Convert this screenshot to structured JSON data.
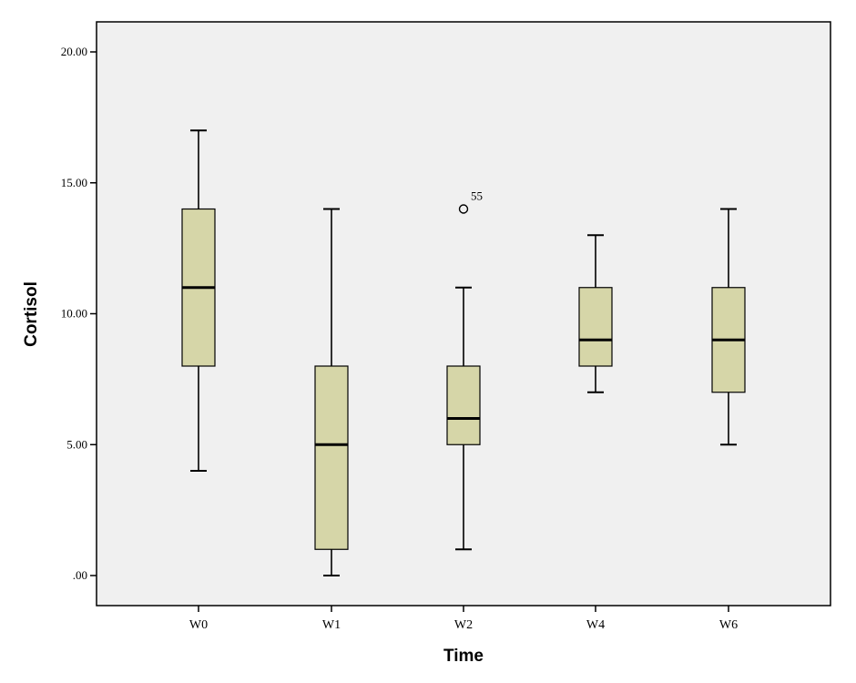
{
  "chart_data": {
    "type": "boxplot",
    "xlabel": "Time",
    "ylabel": "Cortisol",
    "ylim": [
      -1,
      21
    ],
    "yticks": [
      0,
      5,
      10,
      15,
      20
    ],
    "ytick_labels": [
      ".00",
      "5.00",
      "10.00",
      "15.00",
      "20.00"
    ],
    "grid": false,
    "categories": [
      "W0",
      "W1",
      "W2",
      "W4",
      "W6"
    ],
    "boxes": [
      {
        "category": "W0",
        "whisker_low": 4,
        "q1": 8,
        "median": 11,
        "q3": 14,
        "whisker_high": 17,
        "outliers": []
      },
      {
        "category": "W1",
        "whisker_low": 0,
        "q1": 1,
        "median": 5,
        "q3": 8,
        "whisker_high": 14,
        "outliers": []
      },
      {
        "category": "W2",
        "whisker_low": 1,
        "q1": 5,
        "median": 6,
        "q3": 8,
        "whisker_high": 11,
        "outliers": [
          {
            "value": 14,
            "label": "55"
          }
        ]
      },
      {
        "category": "W4",
        "whisker_low": 7,
        "q1": 8,
        "median": 9,
        "q3": 11,
        "whisker_high": 13,
        "outliers": []
      },
      {
        "category": "W6",
        "whisker_low": 5,
        "q1": 7,
        "median": 9,
        "q3": 11,
        "whisker_high": 14,
        "outliers": []
      }
    ],
    "colors": {
      "plot_background": "#f0f0f0",
      "box_fill": "#d6d6a8",
      "stroke": "#000000"
    }
  }
}
